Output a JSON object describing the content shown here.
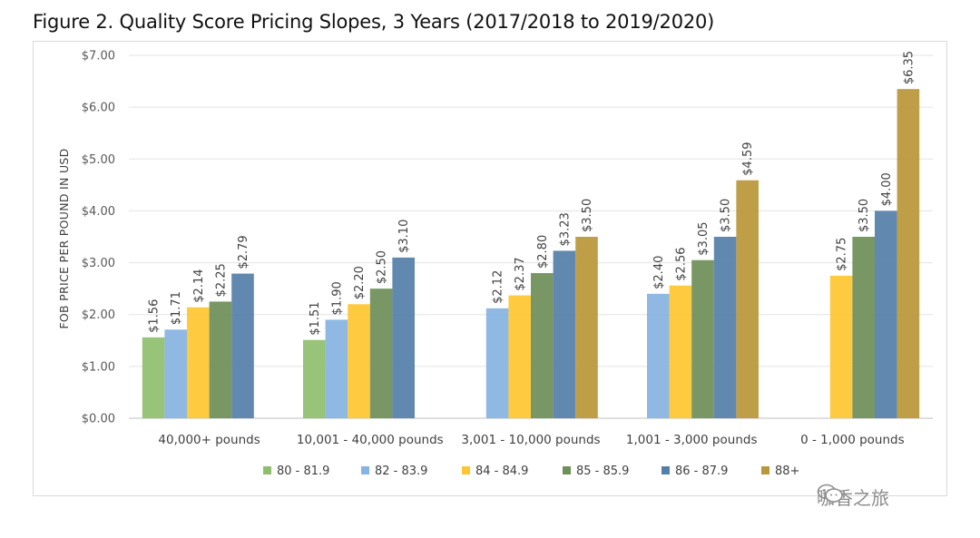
{
  "title": "Figure 2. Quality Score Pricing Slopes, 3 Years (2017/2018 to 2019/2020)",
  "watermark": "咖香之旅",
  "chart_data": {
    "type": "bar",
    "title": "Figure 2. Quality Score Pricing Slopes, 3 Years (2017/2018 to 2019/2020)",
    "xlabel": "",
    "ylabel": "FOB PRICE PER POUND IN USD",
    "ylim": [
      0,
      7
    ],
    "yticks": [
      {
        "value": 0,
        "label": "$0.00"
      },
      {
        "value": 1,
        "label": "$1.00"
      },
      {
        "value": 2,
        "label": "$2.00"
      },
      {
        "value": 3,
        "label": "$3.00"
      },
      {
        "value": 4,
        "label": "$4.00"
      },
      {
        "value": 5,
        "label": "$5.00"
      },
      {
        "value": 6,
        "label": "$6.00"
      },
      {
        "value": 7,
        "label": "$7.00"
      }
    ],
    "grid": true,
    "legend_position": "bottom",
    "categories": [
      "40,000+ pounds",
      "10,001 - 40,000 pounds",
      "3,001 - 10,000 pounds",
      "1,001 - 3,000 pounds",
      "0 - 1,000 pounds"
    ],
    "series": [
      {
        "name": "80 - 81.9",
        "color": "#8fbf6e",
        "values": [
          1.56,
          1.51,
          null,
          null,
          null
        ],
        "labels": [
          "$1.56",
          "$1.51",
          null,
          null,
          null
        ]
      },
      {
        "name": "82 - 83.9",
        "color": "#86b3e0",
        "values": [
          1.71,
          1.9,
          2.12,
          2.4,
          null
        ],
        "labels": [
          "$1.71",
          "$1.90",
          "$2.12",
          "$2.40",
          null
        ]
      },
      {
        "name": "84 - 84.9",
        "color": "#fec631",
        "values": [
          2.14,
          2.2,
          2.37,
          2.56,
          2.75
        ],
        "labels": [
          "$2.14",
          "$2.20",
          "$2.37",
          "$2.56",
          "$2.75"
        ]
      },
      {
        "name": "85 - 85.9",
        "color": "#6f8f58",
        "values": [
          2.25,
          2.5,
          2.8,
          3.05,
          3.5
        ],
        "labels": [
          "$2.25",
          "$2.50",
          "$2.80",
          "$3.05",
          "$3.50"
        ]
      },
      {
        "name": "86 - 87.9",
        "color": "#557fa8",
        "values": [
          2.79,
          3.1,
          3.23,
          3.5,
          4.0
        ],
        "labels": [
          "$2.79",
          "$3.10",
          "$3.23",
          "$3.50",
          "$4.00"
        ]
      },
      {
        "name": "88+",
        "color": "#b9983a",
        "values": [
          null,
          null,
          3.5,
          4.59,
          6.35
        ],
        "labels": [
          null,
          null,
          "$3.50",
          "$4.59",
          "$6.35"
        ]
      }
    ]
  }
}
